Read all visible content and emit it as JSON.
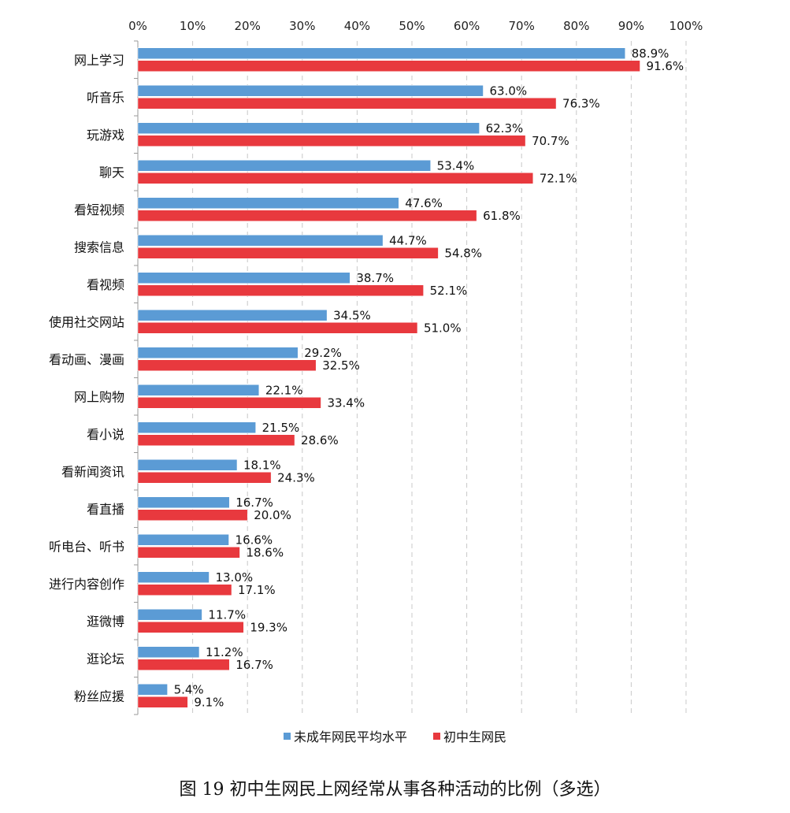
{
  "chart_data": {
    "type": "bar",
    "orientation": "horizontal",
    "title": "图 19 初中生网民上网经常从事各种活动的比例（多选）",
    "xlim": [
      0,
      100
    ],
    "x_ticks": [
      "0%",
      "10%",
      "20%",
      "30%",
      "40%",
      "50%",
      "60%",
      "70%",
      "80%",
      "90%",
      "100%"
    ],
    "grid": "vertical-dashed",
    "legend_position": "bottom",
    "categories": [
      "网上学习",
      "听音乐",
      "玩游戏",
      "聊天",
      "看短视频",
      "搜索信息",
      "看视频",
      "使用社交网站",
      "看动画、漫画",
      "网上购物",
      "看小说",
      "看新闻资讯",
      "看直播",
      "听电台、听书",
      "进行内容创作",
      "逛微博",
      "逛论坛",
      "粉丝应援"
    ],
    "series": [
      {
        "name": "未成年网民平均水平",
        "color": "#5B9BD5",
        "values": [
          88.9,
          63.0,
          62.3,
          53.4,
          47.6,
          44.7,
          38.7,
          34.5,
          29.2,
          22.1,
          21.5,
          18.1,
          16.7,
          16.6,
          13.0,
          11.7,
          11.2,
          5.4
        ],
        "labels": [
          "88.9%",
          "63.0%",
          "62.3%",
          "53.4%",
          "47.6%",
          "44.7%",
          "38.7%",
          "34.5%",
          "29.2%",
          "22.1%",
          "21.5%",
          "18.1%",
          "16.7%",
          "16.6%",
          "13.0%",
          "11.7%",
          "11.2%",
          "5.4%"
        ]
      },
      {
        "name": "初中生网民",
        "color": "#E8393E",
        "values": [
          91.6,
          76.3,
          70.7,
          72.1,
          61.8,
          54.8,
          52.1,
          51.0,
          32.5,
          33.4,
          28.6,
          24.3,
          20.0,
          18.6,
          17.1,
          19.3,
          16.7,
          9.1
        ],
        "labels": [
          "91.6%",
          "76.3%",
          "70.7%",
          "72.1%",
          "61.8%",
          "54.8%",
          "52.1%",
          "51.0%",
          "32.5%",
          "33.4%",
          "28.6%",
          "24.3%",
          "20.0%",
          "18.6%",
          "17.1%",
          "19.3%",
          "16.7%",
          "9.1%"
        ]
      }
    ]
  }
}
